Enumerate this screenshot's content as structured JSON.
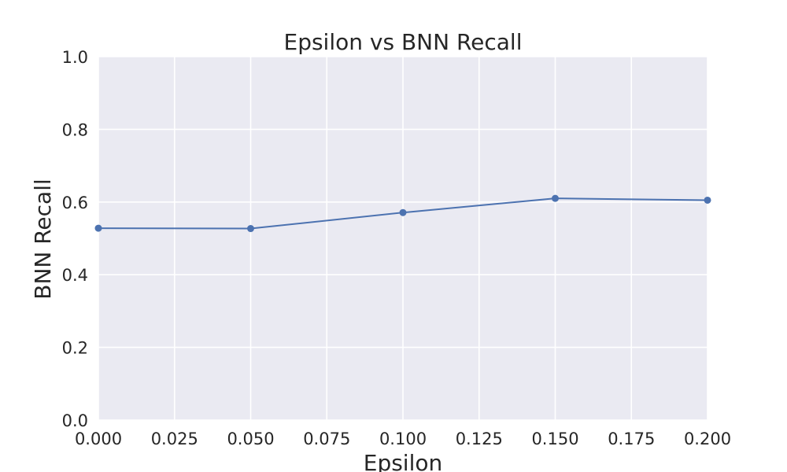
{
  "chart_data": {
    "type": "line",
    "title": "Epsilon vs BNN Recall",
    "xlabel": "Epsilon",
    "ylabel": "BNN Recall",
    "xlim": [
      0.0,
      0.2
    ],
    "ylim": [
      0.0,
      1.0
    ],
    "x_ticks": [
      "0.000",
      "0.025",
      "0.050",
      "0.075",
      "0.100",
      "0.125",
      "0.150",
      "0.175",
      "0.200"
    ],
    "y_ticks": [
      "0.0",
      "0.2",
      "0.4",
      "0.6",
      "0.8",
      "1.0"
    ],
    "grid": true,
    "legend": "none",
    "series": [
      {
        "x": [
          0.0,
          0.05,
          0.1,
          0.15,
          0.2
        ],
        "values": [
          0.528,
          0.527,
          0.571,
          0.61,
          0.605
        ],
        "color": "#4c72b0",
        "marker": "circle"
      }
    ]
  },
  "style": {
    "plot_background": "#eaeaf2",
    "grid_color": "#ffffff",
    "line_color": "#4c72b0"
  }
}
